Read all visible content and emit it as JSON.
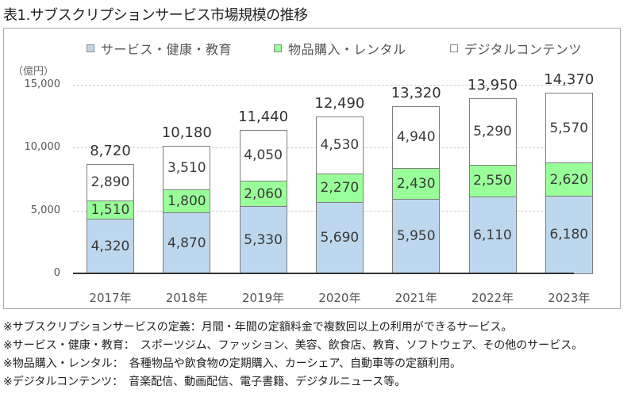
{
  "title": "表1.サブスクリプションサービス市場規模の推移",
  "legend": [
    {
      "label": "サービス・健康・教育",
      "color": "#bdd7ee"
    },
    {
      "label": "物品購入・レンタル",
      "color": "#99ff99"
    },
    {
      "label": "デジタルコンテンツ",
      "color": "#ffffff"
    }
  ],
  "unit_label": "（億円）",
  "y_ticks": [
    "15,000",
    "10,000",
    "5,000",
    "0"
  ],
  "chart_data": {
    "type": "bar",
    "stacked": true,
    "title": "表1.サブスクリプションサービス市場規模の推移",
    "xlabel": "",
    "ylabel": "（億円）",
    "ylim": [
      0,
      15000
    ],
    "grid": true,
    "legend_position": "top",
    "categories": [
      "2017年",
      "2018年",
      "2019年",
      "2020年",
      "2021年",
      "2022年",
      "2023年"
    ],
    "series": [
      {
        "name": "サービス・健康・教育",
        "color": "#bdd7ee",
        "values": [
          4320,
          4870,
          5330,
          5690,
          5950,
          6110,
          6180
        ],
        "labels": [
          "4,320",
          "4,870",
          "5,330",
          "5,690",
          "5,950",
          "6,110",
          "6,180"
        ]
      },
      {
        "name": "物品購入・レンタル",
        "color": "#99ff99",
        "values": [
          1510,
          1800,
          2060,
          2270,
          2430,
          2550,
          2620
        ],
        "labels": [
          "1,510",
          "1,800",
          "2,060",
          "2,270",
          "2,430",
          "2,550",
          "2,620"
        ]
      },
      {
        "name": "デジタルコンテンツ",
        "color": "#ffffff",
        "values": [
          2890,
          3510,
          4050,
          4530,
          4940,
          5290,
          5570
        ],
        "labels": [
          "2,890",
          "3,510",
          "4,050",
          "4,530",
          "4,940",
          "5,290",
          "5,570"
        ]
      }
    ],
    "totals": [
      8720,
      10180,
      11440,
      12490,
      13320,
      13950,
      14370
    ],
    "total_labels": [
      "8,720",
      "10,180",
      "11,440",
      "12,490",
      "13,320",
      "13,950",
      "14,370"
    ]
  },
  "notes": [
    "※サブスクリプションサービスの定義：月間・年間の定額料金で複数回以上の利用ができるサービス。",
    "※サービス・健康・教育：　スポーツジム、ファッション、美容、飲食店、教育、ソフトウェア、その他のサービス。",
    "※物品購入・レンタル：　各種物品や飲食物の定期購入、カーシェア、自動車等の定額利用。",
    "※デジタルコンテンツ：　音楽配信、動画配信、電子書籍、デジタルニュース等。"
  ]
}
